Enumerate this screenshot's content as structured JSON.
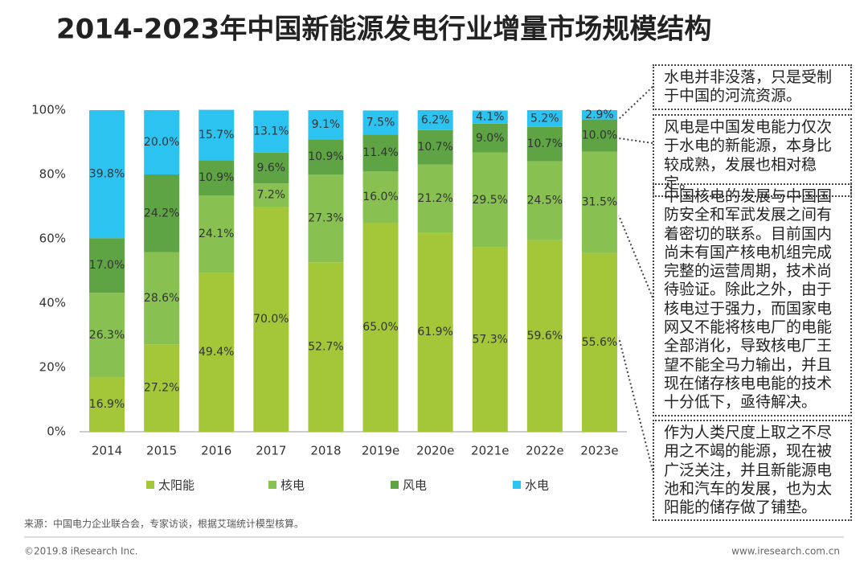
{
  "chart_data": {
    "type": "stacked_bar",
    "title": "2014-2023年中国新能源发电行业增量市场规模结构",
    "categories": [
      "2014",
      "2015",
      "2016",
      "2017",
      "2018",
      "2019e",
      "2020e",
      "2021e",
      "2022e",
      "2023e"
    ],
    "series": [
      {
        "name": "太阳能",
        "color": "#a4c639",
        "values": [
          16.9,
          27.2,
          49.4,
          70.0,
          52.7,
          65.0,
          61.9,
          57.3,
          59.6,
          55.6
        ],
        "value_labels": [
          "16.9%",
          "27.2%",
          "49.4%",
          "70.0%",
          "52.7%",
          "65.0%",
          "61.9%",
          "57.3%",
          "59.6%",
          "55.6%"
        ]
      },
      {
        "name": "核电",
        "color": "#88c152",
        "values": [
          26.3,
          28.6,
          24.1,
          7.2,
          27.3,
          16.0,
          21.2,
          29.5,
          24.5,
          31.5
        ],
        "value_labels": [
          "26.3%",
          "28.6%",
          "24.1%",
          "7.2%",
          "27.3%",
          "16.0%",
          "21.2%",
          "29.5%",
          "24.5%",
          "31.5%"
        ]
      },
      {
        "name": "风电",
        "color": "#5ea444",
        "values": [
          17.0,
          24.2,
          10.9,
          9.6,
          10.9,
          11.4,
          10.7,
          9.0,
          10.7,
          10.0
        ],
        "value_labels": [
          "17.0%",
          "24.2%",
          "10.9%",
          "9.6%",
          "10.9%",
          "11.4%",
          "10.7%",
          "9.0%",
          "10.7%",
          "10.0%"
        ]
      },
      {
        "name": "水电",
        "color": "#2cc3f1",
        "values": [
          39.8,
          20.0,
          15.7,
          13.1,
          9.1,
          7.5,
          6.2,
          4.1,
          5.2,
          2.9
        ],
        "value_labels": [
          "39.8%",
          "20.0%",
          "15.7%",
          "13.1%",
          "9.1%",
          "7.5%",
          "6.2%",
          "4.1%",
          "5.2%",
          "2.9%"
        ]
      }
    ],
    "ylim": [
      0,
      100
    ],
    "yticks": [
      {
        "value": 0,
        "label": "0%"
      },
      {
        "value": 20,
        "label": "20%"
      },
      {
        "value": 40,
        "label": "40%"
      },
      {
        "value": 60,
        "label": "60%"
      },
      {
        "value": 80,
        "label": "80%"
      },
      {
        "value": 100,
        "label": "100%"
      }
    ],
    "annotations": [
      "水电并非没落，只是受制于中国的河流资源。",
      "风电是中国发电能力仅次于水电的新能源，本身比较成熟，发展也相对稳定。",
      "中国核电的发展与中国国防安全和军武发展之间有着密切的联系。目前国内尚未有国产核电机组完成完整的运营周期，技术尚待验证。除此之外，由于核电过于强力，而国家电网又不能将核电厂的电能全部消化，导致核电厂王望不能全马力输出，并且现在储存核电电能的技术十分低下，亟待解决。",
      "作为人类尺度上取之不尽用之不竭的能源，现在被广泛关注，并且新能源电池和汽车的发展，也为太阳能的储存做了铺垫。"
    ],
    "source": "来源：中国电力企业联合会，专家访谈，根据艾瑞统计模型核算。",
    "copyright": "©2019.8 iResearch Inc.",
    "website": "www.iresearch.com.cn"
  }
}
